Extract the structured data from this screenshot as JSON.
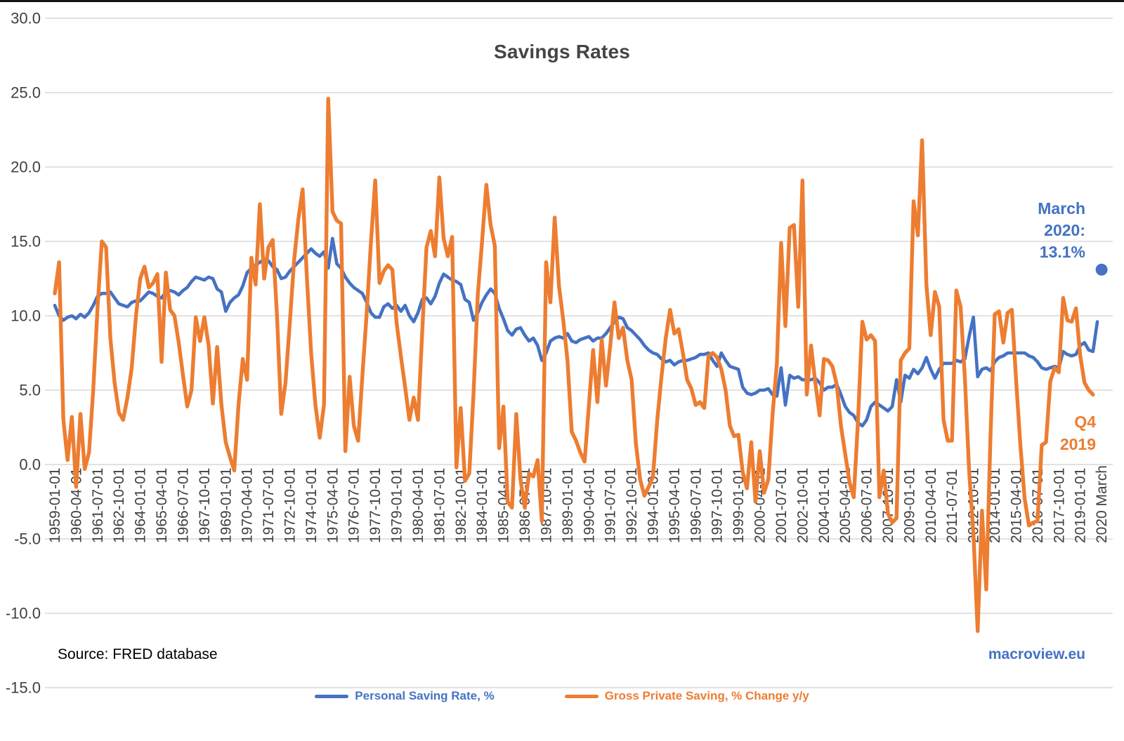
{
  "page": {
    "title": "Savings Rates",
    "source_note": "Source: FRED database",
    "brand": "macroview.eu"
  },
  "colors": {
    "blue": "#4472C4",
    "orange": "#ED7D31",
    "title_gray": "#444444",
    "axis_gray": "#404040",
    "grid_gray": "#d9d9d9"
  },
  "legend": {
    "items": [
      {
        "label": "Personal Saving Rate, %",
        "color_key": "blue"
      },
      {
        "label": "Gross Private Saving, % Change y/y",
        "color_key": "orange"
      }
    ]
  },
  "annotations": {
    "march_2020": {
      "lines": [
        "March",
        "2020:",
        "13.1%"
      ],
      "color_key": "blue"
    },
    "q4_2019": {
      "lines": [
        "Q4",
        "2019"
      ],
      "color_key": "orange"
    }
  },
  "chart_data": {
    "type": "line",
    "title": "Savings Rates",
    "xlabel": "",
    "ylabel": "",
    "x_start": "1959-01-01",
    "x_frequency": "quarterly",
    "ylim": [
      -15,
      30
    ],
    "y_tick_step": 5,
    "grid": true,
    "legend_position": "bottom",
    "y_ticks": [
      {
        "v": 30,
        "label": "30.0"
      },
      {
        "v": 25,
        "label": "25.0"
      },
      {
        "v": 20,
        "label": "20.0"
      },
      {
        "v": 15,
        "label": "15.0"
      },
      {
        "v": 10,
        "label": "10.0"
      },
      {
        "v": 5,
        "label": "5.0"
      },
      {
        "v": 0,
        "label": "0.0"
      },
      {
        "v": -5,
        "label": "-5.0"
      },
      {
        "v": -10,
        "label": "-10.0"
      },
      {
        "v": -15,
        "label": "-15.0"
      }
    ],
    "x_ticks": [
      {
        "i": 0,
        "label": "1959-01-01"
      },
      {
        "i": 5,
        "label": "1960-04-01"
      },
      {
        "i": 10,
        "label": "1961-07-01"
      },
      {
        "i": 15,
        "label": "1962-10-01"
      },
      {
        "i": 20,
        "label": "1964-01-01"
      },
      {
        "i": 25,
        "label": "1965-04-01"
      },
      {
        "i": 30,
        "label": "1966-07-01"
      },
      {
        "i": 35,
        "label": "1967-10-01"
      },
      {
        "i": 40,
        "label": "1969-01-01"
      },
      {
        "i": 45,
        "label": "1970-04-01"
      },
      {
        "i": 50,
        "label": "1971-07-01"
      },
      {
        "i": 55,
        "label": "1972-10-01"
      },
      {
        "i": 60,
        "label": "1974-01-01"
      },
      {
        "i": 65,
        "label": "1975-04-01"
      },
      {
        "i": 70,
        "label": "1976-07-01"
      },
      {
        "i": 75,
        "label": "1977-10-01"
      },
      {
        "i": 80,
        "label": "1979-01-01"
      },
      {
        "i": 85,
        "label": "1980-04-01"
      },
      {
        "i": 90,
        "label": "1981-07-01"
      },
      {
        "i": 95,
        "label": "1982-10-01"
      },
      {
        "i": 100,
        "label": "1984-01-01"
      },
      {
        "i": 105,
        "label": "1985-04-01"
      },
      {
        "i": 110,
        "label": "1986-07-01"
      },
      {
        "i": 115,
        "label": "1987-10-01"
      },
      {
        "i": 120,
        "label": "1989-01-01"
      },
      {
        "i": 125,
        "label": "1990-04-01"
      },
      {
        "i": 130,
        "label": "1991-07-01"
      },
      {
        "i": 135,
        "label": "1992-10-01"
      },
      {
        "i": 140,
        "label": "1994-01-01"
      },
      {
        "i": 145,
        "label": "1995-04-01"
      },
      {
        "i": 150,
        "label": "1996-07-01"
      },
      {
        "i": 155,
        "label": "1997-10-01"
      },
      {
        "i": 160,
        "label": "1999-01-01"
      },
      {
        "i": 165,
        "label": "2000-04-01"
      },
      {
        "i": 170,
        "label": "2001-07-01"
      },
      {
        "i": 175,
        "label": "2002-10-01"
      },
      {
        "i": 180,
        "label": "2004-01-01"
      },
      {
        "i": 185,
        "label": "2005-04-01"
      },
      {
        "i": 190,
        "label": "2006-07-01"
      },
      {
        "i": 195,
        "label": "2007-10-01"
      },
      {
        "i": 200,
        "label": "2009-01-01"
      },
      {
        "i": 205,
        "label": "2010-04-01"
      },
      {
        "i": 210,
        "label": "2011-07-01"
      },
      {
        "i": 215,
        "label": "2012-10-01"
      },
      {
        "i": 220,
        "label": "2014-01-01"
      },
      {
        "i": 225,
        "label": "2015-04-01"
      },
      {
        "i": 230,
        "label": "2016-07-01"
      },
      {
        "i": 235,
        "label": "2017-10-01"
      },
      {
        "i": 240,
        "label": "2019-01-01"
      },
      {
        "i": 245,
        "label": "2020 March"
      }
    ],
    "series": [
      {
        "name": "Personal Saving Rate, %",
        "short": "personal-saving-rate",
        "color": "#4472C4",
        "values": [
          10.7,
          10.0,
          9.7,
          9.9,
          10.0,
          9.8,
          10.1,
          9.9,
          10.2,
          10.7,
          11.3,
          11.5,
          11.5,
          11.6,
          11.2,
          10.8,
          10.7,
          10.6,
          10.9,
          11.0,
          11.0,
          11.3,
          11.6,
          11.5,
          11.3,
          11.2,
          11.6,
          11.7,
          11.6,
          11.4,
          11.7,
          11.9,
          12.3,
          12.6,
          12.5,
          12.4,
          12.6,
          12.5,
          11.8,
          11.6,
          10.3,
          10.9,
          11.2,
          11.4,
          12.0,
          12.9,
          13.2,
          13.4,
          13.6,
          13.8,
          13.7,
          13.3,
          13.1,
          12.5,
          12.6,
          13.0,
          13.3,
          13.6,
          13.9,
          14.2,
          14.5,
          14.2,
          14.0,
          14.3,
          13.2,
          15.2,
          13.5,
          13.2,
          12.6,
          12.2,
          11.9,
          11.7,
          11.5,
          10.9,
          10.2,
          9.9,
          9.9,
          10.6,
          10.8,
          10.5,
          10.7,
          10.3,
          10.7,
          10.0,
          9.6,
          10.2,
          11.1,
          11.2,
          10.8,
          11.3,
          12.2,
          12.8,
          12.6,
          12.4,
          12.3,
          12.1,
          11.1,
          10.9,
          9.7,
          10.2,
          10.9,
          11.4,
          11.8,
          11.5,
          10.5,
          9.8,
          9.0,
          8.7,
          9.1,
          9.2,
          8.7,
          8.3,
          8.5,
          8.0,
          7.0,
          7.5,
          8.3,
          8.5,
          8.6,
          8.5,
          8.8,
          8.3,
          8.2,
          8.4,
          8.5,
          8.6,
          8.3,
          8.5,
          8.5,
          8.8,
          9.2,
          9.6,
          9.9,
          9.8,
          9.2,
          9.0,
          8.7,
          8.4,
          8.0,
          7.7,
          7.5,
          7.4,
          7.1,
          6.9,
          7.0,
          6.7,
          6.9,
          7.0,
          7.0,
          7.1,
          7.2,
          7.4,
          7.4,
          7.5,
          7.0,
          6.6,
          7.5,
          7.0,
          6.6,
          6.5,
          6.4,
          5.2,
          4.8,
          4.7,
          4.8,
          5.0,
          5.0,
          5.1,
          4.7,
          4.6,
          6.5,
          4.0,
          6.0,
          5.8,
          5.9,
          5.7,
          5.7,
          5.7,
          5.8,
          5.5,
          5.0,
          5.2,
          5.2,
          5.4,
          4.7,
          3.9,
          3.5,
          3.3,
          2.8,
          2.6,
          3.0,
          3.9,
          4.2,
          4.0,
          3.8,
          3.6,
          3.9,
          5.7,
          4.2,
          6.0,
          5.8,
          6.4,
          6.1,
          6.5,
          7.2,
          6.4,
          5.8,
          6.4,
          6.8,
          6.8,
          6.8,
          7.0,
          6.9,
          7.1,
          8.6,
          9.9,
          5.9,
          6.4,
          6.5,
          6.3,
          6.9,
          7.2,
          7.3,
          7.5,
          7.5,
          7.5,
          7.5,
          7.5,
          7.3,
          7.2,
          6.9,
          6.5,
          6.4,
          6.5,
          6.6,
          6.5,
          7.6,
          7.4,
          7.3,
          7.4,
          8.0,
          8.2,
          7.7,
          7.6,
          9.6
        ]
      },
      {
        "name": "Gross Private Saving, % Change y/y",
        "short": "gross-private-saving",
        "color": "#ED7D31",
        "values": [
          11.5,
          13.6,
          3.0,
          0.3,
          3.2,
          -1.5,
          3.4,
          -0.3,
          0.8,
          5.0,
          10.5,
          15.0,
          14.6,
          8.5,
          5.5,
          3.5,
          3.0,
          4.5,
          6.5,
          10.0,
          12.5,
          13.3,
          11.9,
          12.2,
          12.8,
          6.9,
          12.9,
          10.4,
          10.0,
          8.2,
          6.0,
          3.9,
          5.0,
          9.9,
          8.3,
          9.9,
          8.0,
          4.1,
          7.9,
          4.0,
          1.5,
          0.5,
          -0.4,
          4.0,
          7.1,
          5.7,
          13.9,
          12.1,
          17.5,
          12.5,
          14.6,
          15.1,
          10.0,
          3.4,
          5.5,
          9.5,
          13.7,
          16.5,
          18.5,
          12.6,
          7.5,
          4.0,
          1.8,
          4.0,
          24.6,
          17.0,
          16.4,
          16.2,
          0.9,
          5.9,
          2.6,
          1.6,
          6.0,
          10.2,
          15.0,
          19.1,
          12.2,
          13.0,
          13.4,
          13.1,
          9.5,
          7.3,
          5.2,
          3.0,
          4.5,
          3.0,
          9.0,
          14.6,
          15.7,
          14.0,
          19.3,
          15.2,
          14.0,
          15.3,
          -0.2,
          3.8,
          -1.1,
          -0.6,
          4.7,
          11.4,
          15.0,
          18.8,
          16.1,
          14.7,
          1.1,
          3.9,
          -2.5,
          -2.9,
          3.4,
          -1.0,
          -2.9,
          -0.6,
          -0.8,
          0.3,
          -3.8,
          13.6,
          10.9,
          16.6,
          12.0,
          9.7,
          7.0,
          2.2,
          1.6,
          0.8,
          0.2,
          4.0,
          7.7,
          4.2,
          8.4,
          5.3,
          8.0,
          10.9,
          8.5,
          9.2,
          7.0,
          5.7,
          1.4,
          -1.0,
          -2.1,
          -1.5,
          -0.8,
          3.0,
          5.9,
          8.5,
          10.4,
          8.8,
          9.1,
          7.5,
          5.7,
          5.1,
          4.0,
          4.2,
          3.8,
          7.3,
          7.5,
          7.2,
          6.4,
          5.0,
          2.6,
          1.9,
          2.0,
          -0.5,
          -1.6,
          1.5,
          -2.5,
          0.9,
          -1.9,
          -1.0,
          3.4,
          6.8,
          14.9,
          9.3,
          15.9,
          16.1,
          10.6,
          19.1,
          4.7,
          8.0,
          5.5,
          3.3,
          7.1,
          7.0,
          6.6,
          5.4,
          2.6,
          0.7,
          -1.2,
          -2.2,
          3.0,
          9.6,
          8.4,
          8.7,
          8.3,
          -2.2,
          -0.4,
          -3.3,
          -3.9,
          -3.6,
          7.0,
          7.5,
          7.8,
          17.7,
          15.4,
          21.8,
          12.1,
          8.7,
          11.6,
          10.6,
          3.0,
          1.6,
          1.6,
          11.7,
          10.6,
          5.8,
          -0.4,
          -4.6,
          -11.2,
          -3.1,
          -8.4,
          2.0,
          10.1,
          10.3,
          8.2,
          10.2,
          10.4,
          5.6,
          1.3,
          -2.3,
          -4.1,
          -3.9,
          -3.8,
          1.3,
          1.5,
          5.6,
          6.5,
          6.2,
          11.2,
          9.7,
          9.6,
          10.5,
          7.3,
          5.5,
          5.0,
          4.7
        ]
      }
    ],
    "extra_point": {
      "label": "2020 March",
      "series_index": 0,
      "index": 245,
      "value": 13.1,
      "annotation": "March 2020: 13.1%"
    },
    "series_end_annotations": [
      {
        "series": "Gross Private Saving, % Change y/y",
        "annotation": "Q4 2019",
        "last_value": 4.7
      }
    ]
  }
}
